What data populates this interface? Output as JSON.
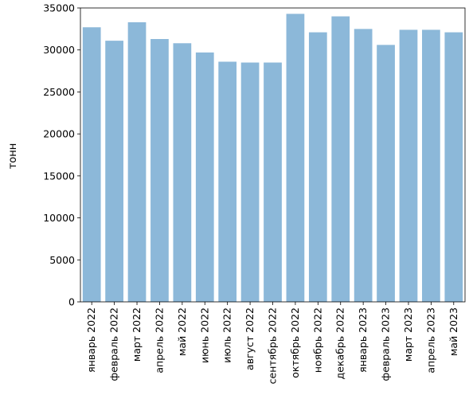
{
  "chart_data": {
    "type": "bar",
    "title": "",
    "xlabel": "",
    "ylabel": "тонн",
    "ylim": [
      0,
      35000
    ],
    "yticks": [
      0,
      5000,
      10000,
      15000,
      20000,
      25000,
      30000,
      35000
    ],
    "grid": false,
    "bar_color": "#8cb8d9",
    "categories": [
      "январь 2022",
      "февраль 2022",
      "март 2022",
      "апрель 2022",
      "май 2022",
      "июнь 2022",
      "июль 2022",
      "август 2022",
      "сентябрь 2022",
      "октябрь 2022",
      "ноябрь 2022",
      "декабрь 2022",
      "январь 2023",
      "февраль 2023",
      "март 2023",
      "апрель 2023",
      "май 2023"
    ],
    "values": [
      32700,
      31100,
      33300,
      31300,
      30800,
      29700,
      28600,
      28500,
      28500,
      34300,
      32100,
      34000,
      32500,
      30600,
      32400,
      32400,
      32100
    ]
  }
}
